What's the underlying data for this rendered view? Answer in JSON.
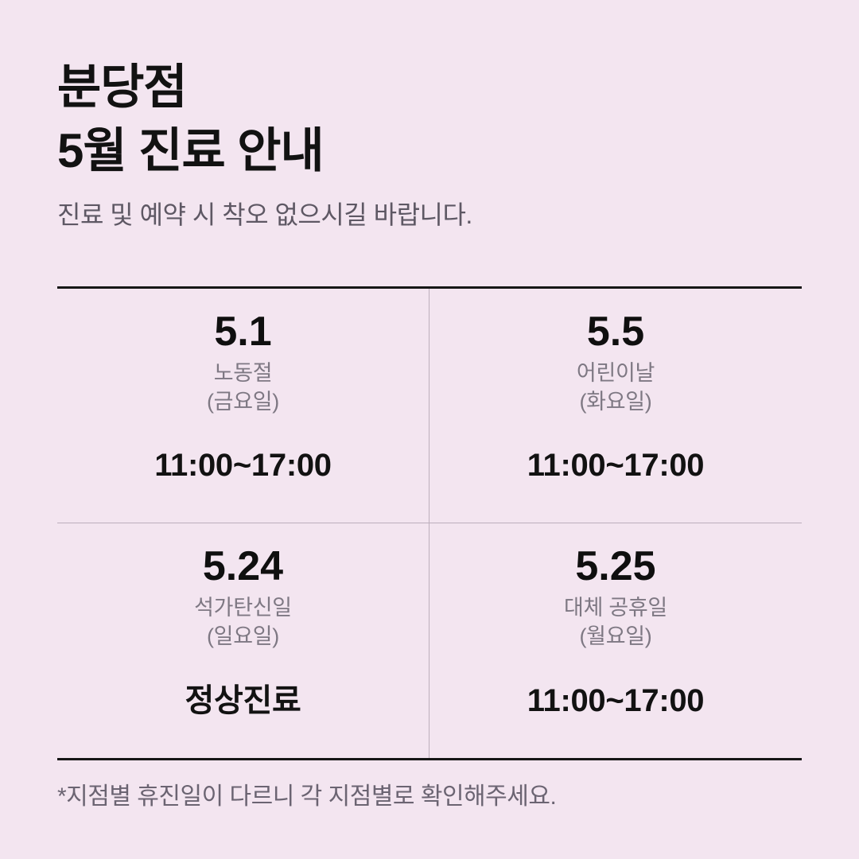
{
  "page": {
    "title_line1": "분당점",
    "title_line2": "5월 진료 안내",
    "subtitle": "진료 및 예약 시 착오 없으시길 바랍니다.",
    "footnote": "*지점별 휴진일이 다르니 각 지점별로 확인해주세요."
  },
  "schedule": {
    "cells": [
      {
        "date": "5.1",
        "holiday": "노동절",
        "weekday": "(금요일)",
        "hours": "11:00~17:00"
      },
      {
        "date": "5.5",
        "holiday": "어린이날",
        "weekday": "(화요일)",
        "hours": "11:00~17:00"
      },
      {
        "date": "5.24",
        "holiday": "석가탄신일",
        "weekday": "(일요일)",
        "hours": "정상진료"
      },
      {
        "date": "5.25",
        "holiday": "대체 공휴일",
        "weekday": "(월요일)",
        "hours": "11:00~17:00"
      }
    ]
  },
  "colors": {
    "background": "#F3E5F0",
    "text_primary": "#121212",
    "text_subtitle": "#5E5864",
    "text_label": "#7E7883",
    "text_footnote": "#6B6472",
    "rule_heavy": "#161616",
    "rule_light": "#BCAEBC"
  }
}
